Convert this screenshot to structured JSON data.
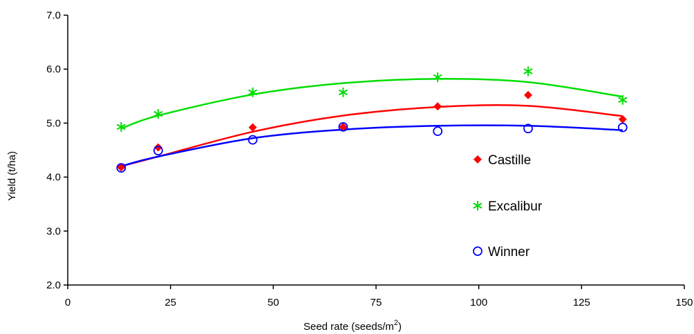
{
  "chart_data": {
    "type": "scatter",
    "xlabel": "Seed rate (seeds/m",
    "xlabel_sup": "2",
    "xlabel_end": ")",
    "ylabel": "Yield (t/ha)",
    "xlim": [
      0,
      150
    ],
    "ylim": [
      2.0,
      7.0
    ],
    "x_ticks": [
      "0",
      "25",
      "50",
      "75",
      "100",
      "125",
      "150"
    ],
    "y_ticks": [
      "2.0",
      "3.0",
      "4.0",
      "5.0",
      "6.0",
      "7.0"
    ],
    "grid": false,
    "legend_position": "right",
    "x": [
      13,
      22,
      45,
      67,
      90,
      112,
      135
    ],
    "series": [
      {
        "name": "Castille",
        "values": [
          4.18,
          4.55,
          4.92,
          4.93,
          5.31,
          5.52,
          5.07
        ],
        "color": "#ff0000",
        "marker": "diamond",
        "trend": [
          4.2,
          4.38,
          4.84,
          5.14,
          5.3,
          5.32,
          5.13
        ]
      },
      {
        "name": "Excalibur",
        "values": [
          4.93,
          5.17,
          5.57,
          5.57,
          5.85,
          5.96,
          5.43
        ],
        "color": "#00dd00",
        "marker": "asterisk",
        "trend": [
          4.9,
          5.14,
          5.53,
          5.74,
          5.82,
          5.76,
          5.49
        ]
      },
      {
        "name": "Winner",
        "values": [
          4.17,
          4.49,
          4.69,
          4.93,
          4.85,
          4.9,
          4.92
        ],
        "color": "#0000ff",
        "marker": "circle",
        "trend": [
          4.2,
          4.38,
          4.72,
          4.88,
          4.95,
          4.95,
          4.87
        ]
      }
    ]
  }
}
